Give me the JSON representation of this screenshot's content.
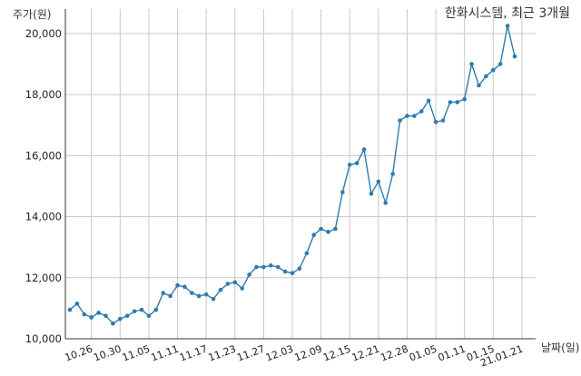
{
  "chart_data": {
    "type": "line",
    "title": "한화시스템, 최근 3개월",
    "xlabel": "날짜(일)",
    "ylabel": "주가(원)",
    "ylim": [
      10000,
      20800
    ],
    "yticks": [
      10000,
      12000,
      14000,
      16000,
      18000,
      20000
    ],
    "ytick_labels": [
      "10,000",
      "12,000",
      "14,000",
      "16,000",
      "18,000",
      "20,000"
    ],
    "xtick_labels": [
      "10.26",
      "10.30",
      "11.05",
      "11.11",
      "11.17",
      "11.23",
      "11.27",
      "12.03",
      "12.09",
      "12.15",
      "12.21",
      "12.28",
      "01.05",
      "01.11",
      "01.15",
      "21.01.21"
    ],
    "xtick_indices": [
      3,
      7,
      11,
      15,
      19,
      23,
      27,
      31,
      35,
      39,
      43,
      47,
      51,
      55,
      59,
      63
    ],
    "grid": true,
    "series": [
      {
        "color": "#2e7bb0",
        "values": [
          10950,
          11150,
          10800,
          10700,
          10850,
          10750,
          10500,
          10650,
          10750,
          10900,
          10950,
          10750,
          10950,
          11500,
          11400,
          11750,
          11700,
          11500,
          11400,
          11450,
          11300,
          11600,
          11800,
          11850,
          11650,
          12100,
          12350,
          12350,
          12400,
          12350,
          12200,
          12150,
          12300,
          12800,
          13400,
          13600,
          13500,
          13600,
          14800,
          15700,
          15750,
          16200,
          14750,
          15150,
          14450,
          15400,
          17150,
          17300,
          17300,
          17450,
          17800,
          17100,
          17150,
          17750,
          17750,
          17850,
          19000,
          18300,
          18600,
          18800,
          19000,
          20250,
          19250
        ]
      }
    ]
  }
}
